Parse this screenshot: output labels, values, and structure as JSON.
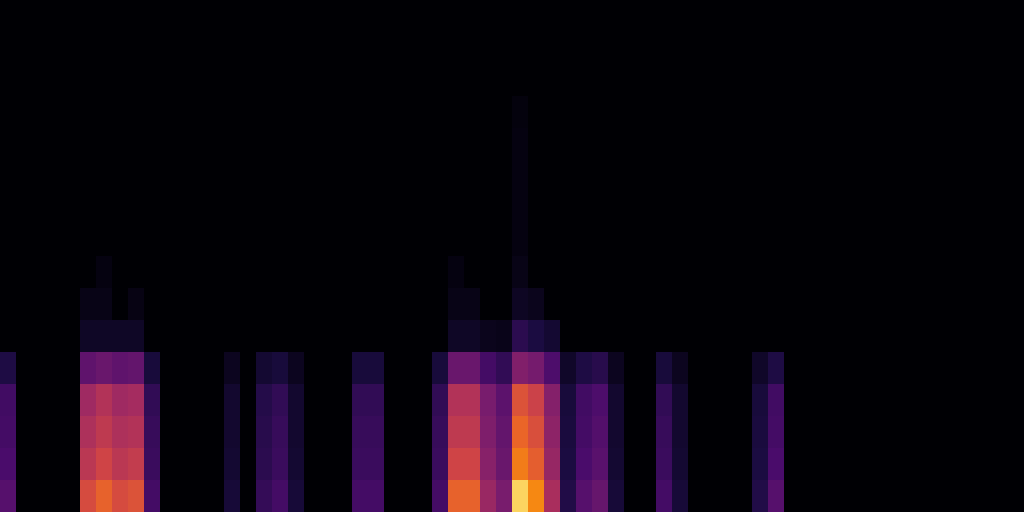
{
  "chart_data": {
    "type": "heatmap",
    "tick_labels": false,
    "grid": false,
    "zlim": [
      0,
      1
    ],
    "cells": [
      [
        0.39,
        0,
        0,
        0,
        0,
        0.77,
        0.83,
        0.77,
        0.79,
        0.33,
        0,
        0,
        0,
        0,
        0.17,
        0,
        0.28,
        0.33,
        0.17,
        0,
        0,
        0,
        0.33,
        0.33,
        0,
        0,
        0,
        0.33,
        0.83,
        0.83,
        0.61,
        0.5,
        0.97,
        0.9,
        0.66,
        0.22,
        0.39,
        0.44,
        0.17,
        0,
        0,
        0.33,
        0.17,
        0,
        0,
        0,
        0,
        0.22,
        0.39,
        0,
        0,
        0,
        0,
        0,
        0,
        0,
        0,
        0,
        0,
        0,
        0,
        0,
        0,
        0
      ],
      [
        0.35,
        0,
        0,
        0,
        0,
        0.7,
        0.75,
        0.7,
        0.72,
        0.3,
        0,
        0,
        0,
        0,
        0.15,
        0,
        0.25,
        0.3,
        0.15,
        0,
        0,
        0,
        0.3,
        0.3,
        0,
        0,
        0,
        0.3,
        0.75,
        0.75,
        0.55,
        0.45,
        0.88,
        0.82,
        0.6,
        0.2,
        0.35,
        0.4,
        0.15,
        0,
        0,
        0.3,
        0.15,
        0,
        0,
        0,
        0,
        0.2,
        0.35,
        0,
        0,
        0,
        0,
        0,
        0,
        0,
        0,
        0,
        0,
        0,
        0,
        0,
        0,
        0
      ],
      [
        0.33,
        0,
        0,
        0,
        0,
        0.67,
        0.71,
        0.67,
        0.68,
        0.29,
        0,
        0,
        0,
        0,
        0.14,
        0,
        0.24,
        0.29,
        0.14,
        0,
        0,
        0,
        0.29,
        0.29,
        0,
        0,
        0,
        0.29,
        0.71,
        0.71,
        0.52,
        0.43,
        0.84,
        0.78,
        0.57,
        0.19,
        0.33,
        0.38,
        0.14,
        0,
        0,
        0.29,
        0.14,
        0,
        0,
        0,
        0,
        0.19,
        0.33,
        0,
        0,
        0,
        0,
        0,
        0,
        0,
        0,
        0,
        0,
        0,
        0,
        0,
        0,
        0
      ],
      [
        0.32,
        0,
        0,
        0,
        0,
        0.63,
        0.68,
        0.63,
        0.65,
        0.27,
        0,
        0,
        0,
        0,
        0.14,
        0,
        0.23,
        0.27,
        0.14,
        0,
        0,
        0,
        0.27,
        0.27,
        0,
        0,
        0,
        0.27,
        0.68,
        0.68,
        0.5,
        0.41,
        0.79,
        0.74,
        0.54,
        0.18,
        0.32,
        0.36,
        0.14,
        0,
        0,
        0.27,
        0.14,
        0,
        0,
        0,
        0,
        0.18,
        0.32,
        0,
        0,
        0,
        0,
        0,
        0,
        0,
        0,
        0,
        0,
        0,
        0,
        0,
        0,
        0
      ],
      [
        0.21,
        0,
        0,
        0,
        0,
        0.42,
        0.45,
        0.42,
        0.43,
        0.18,
        0,
        0,
        0,
        0,
        0.09,
        0,
        0.15,
        0.18,
        0.09,
        0,
        0,
        0,
        0.18,
        0.18,
        0,
        0,
        0,
        0.18,
        0.45,
        0.45,
        0.33,
        0.27,
        0.53,
        0.49,
        0.36,
        0.12,
        0.21,
        0.24,
        0.09,
        0,
        0,
        0.18,
        0.09,
        0,
        0,
        0,
        0,
        0.12,
        0.21,
        0,
        0,
        0,
        0,
        0,
        0,
        0,
        0,
        0,
        0,
        0,
        0,
        0,
        0,
        0
      ],
      [
        0,
        0,
        0,
        0,
        0,
        0.11,
        0.11,
        0.11,
        0.11,
        0,
        0,
        0,
        0,
        0,
        0,
        0,
        0,
        0,
        0,
        0,
        0,
        0,
        0,
        0,
        0,
        0,
        0,
        0,
        0.11,
        0.11,
        0.08,
        0.07,
        0.25,
        0.2,
        0.15,
        0,
        0,
        0,
        0,
        0,
        0,
        0,
        0,
        0,
        0,
        0,
        0,
        0,
        0,
        0,
        0,
        0,
        0,
        0,
        0,
        0,
        0,
        0,
        0,
        0,
        0,
        0,
        0,
        0
      ],
      [
        0,
        0,
        0,
        0,
        0,
        0.06,
        0.06,
        0,
        0.05,
        0,
        0,
        0,
        0,
        0,
        0,
        0,
        0,
        0,
        0,
        0,
        0,
        0,
        0,
        0,
        0,
        0,
        0,
        0,
        0.06,
        0.06,
        0,
        0,
        0.1,
        0.08,
        0,
        0,
        0,
        0,
        0,
        0,
        0,
        0,
        0,
        0,
        0,
        0,
        0,
        0,
        0,
        0,
        0,
        0,
        0,
        0,
        0,
        0,
        0,
        0,
        0,
        0,
        0,
        0,
        0,
        0
      ],
      [
        0,
        0,
        0,
        0,
        0,
        0,
        0.04,
        0,
        0,
        0,
        0,
        0,
        0,
        0,
        0,
        0,
        0,
        0,
        0,
        0,
        0,
        0,
        0,
        0,
        0,
        0,
        0,
        0,
        0.04,
        0,
        0,
        0,
        0.06,
        0,
        0,
        0,
        0,
        0,
        0,
        0,
        0,
        0,
        0,
        0,
        0,
        0,
        0,
        0,
        0,
        0,
        0,
        0,
        0,
        0,
        0,
        0,
        0,
        0,
        0,
        0,
        0,
        0,
        0,
        0
      ],
      [
        0,
        0,
        0,
        0,
        0,
        0,
        0,
        0,
        0,
        0,
        0,
        0,
        0,
        0,
        0,
        0,
        0,
        0,
        0,
        0,
        0,
        0,
        0,
        0,
        0,
        0,
        0,
        0,
        0,
        0,
        0,
        0,
        0.04,
        0,
        0,
        0,
        0,
        0,
        0,
        0,
        0,
        0,
        0,
        0,
        0,
        0,
        0,
        0,
        0,
        0,
        0,
        0,
        0,
        0,
        0,
        0,
        0,
        0,
        0,
        0,
        0,
        0,
        0,
        0
      ],
      [
        0,
        0,
        0,
        0,
        0,
        0,
        0,
        0,
        0,
        0,
        0,
        0,
        0,
        0,
        0,
        0,
        0,
        0,
        0,
        0,
        0,
        0,
        0,
        0,
        0,
        0,
        0,
        0,
        0,
        0,
        0,
        0,
        0.04,
        0,
        0,
        0,
        0,
        0,
        0,
        0,
        0,
        0,
        0,
        0,
        0,
        0,
        0,
        0,
        0,
        0,
        0,
        0,
        0,
        0,
        0,
        0,
        0,
        0,
        0,
        0,
        0,
        0,
        0,
        0
      ],
      [
        0,
        0,
        0,
        0,
        0,
        0,
        0,
        0,
        0,
        0,
        0,
        0,
        0,
        0,
        0,
        0,
        0,
        0,
        0,
        0,
        0,
        0,
        0,
        0,
        0,
        0,
        0,
        0,
        0,
        0,
        0,
        0,
        0.04,
        0,
        0,
        0,
        0,
        0,
        0,
        0,
        0,
        0,
        0,
        0,
        0,
        0,
        0,
        0,
        0,
        0,
        0,
        0,
        0,
        0,
        0,
        0,
        0,
        0,
        0,
        0,
        0,
        0,
        0,
        0
      ],
      [
        0,
        0,
        0,
        0,
        0,
        0,
        0,
        0,
        0,
        0,
        0,
        0,
        0,
        0,
        0,
        0,
        0,
        0,
        0,
        0,
        0,
        0,
        0,
        0,
        0,
        0,
        0,
        0,
        0,
        0,
        0,
        0,
        0.04,
        0,
        0,
        0,
        0,
        0,
        0,
        0,
        0,
        0,
        0,
        0,
        0,
        0,
        0,
        0,
        0,
        0,
        0,
        0,
        0,
        0,
        0,
        0,
        0,
        0,
        0,
        0,
        0,
        0,
        0,
        0
      ],
      [
        0,
        0,
        0,
        0,
        0,
        0,
        0,
        0,
        0,
        0,
        0,
        0,
        0,
        0,
        0,
        0,
        0,
        0,
        0,
        0,
        0,
        0,
        0,
        0,
        0,
        0,
        0,
        0,
        0,
        0,
        0,
        0,
        0.03,
        0,
        0,
        0,
        0,
        0,
        0,
        0,
        0,
        0,
        0,
        0,
        0,
        0,
        0,
        0,
        0,
        0,
        0,
        0,
        0,
        0,
        0,
        0,
        0,
        0,
        0,
        0,
        0,
        0,
        0,
        0
      ],
      [
        0,
        0,
        0,
        0,
        0,
        0,
        0,
        0,
        0,
        0,
        0,
        0,
        0,
        0,
        0,
        0,
        0,
        0,
        0,
        0,
        0,
        0,
        0,
        0,
        0,
        0,
        0,
        0,
        0,
        0,
        0,
        0,
        0,
        0,
        0,
        0,
        0,
        0,
        0,
        0,
        0,
        0,
        0,
        0,
        0,
        0,
        0,
        0,
        0,
        0,
        0,
        0,
        0,
        0,
        0,
        0,
        0,
        0,
        0,
        0,
        0,
        0,
        0,
        0
      ],
      [
        0,
        0,
        0,
        0,
        0,
        0,
        0,
        0,
        0,
        0,
        0,
        0,
        0,
        0,
        0,
        0,
        0,
        0,
        0,
        0,
        0,
        0,
        0,
        0,
        0,
        0,
        0,
        0,
        0,
        0,
        0,
        0,
        0,
        0,
        0,
        0,
        0,
        0,
        0,
        0,
        0,
        0,
        0,
        0,
        0,
        0,
        0,
        0,
        0,
        0,
        0,
        0,
        0,
        0,
        0,
        0,
        0,
        0,
        0,
        0,
        0,
        0,
        0,
        0
      ],
      [
        0,
        0,
        0,
        0,
        0,
        0,
        0,
        0,
        0,
        0,
        0,
        0,
        0,
        0,
        0,
        0,
        0,
        0,
        0,
        0,
        0,
        0,
        0,
        0,
        0,
        0,
        0,
        0,
        0,
        0,
        0,
        0,
        0,
        0,
        0,
        0,
        0,
        0,
        0,
        0,
        0,
        0,
        0,
        0,
        0,
        0,
        0,
        0,
        0,
        0,
        0,
        0,
        0,
        0,
        0,
        0,
        0,
        0,
        0,
        0,
        0,
        0,
        0,
        0
      ]
    ]
  }
}
